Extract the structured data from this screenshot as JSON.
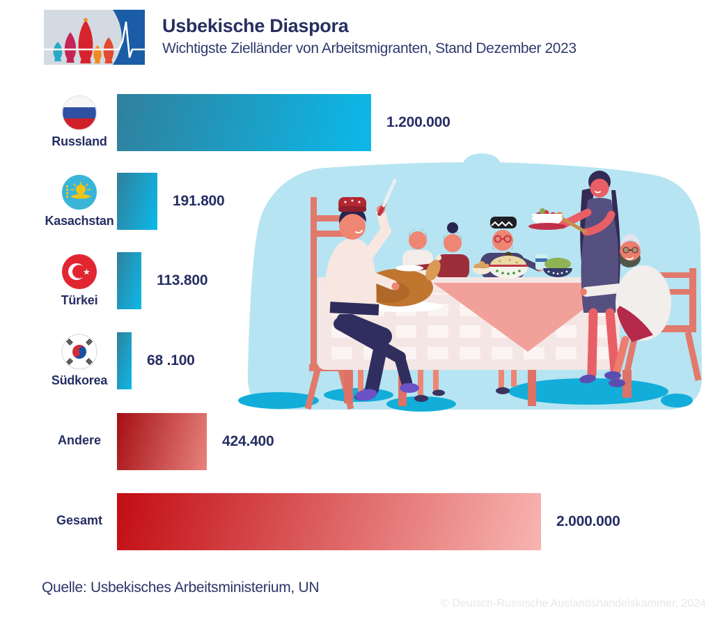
{
  "header": {
    "title": "Usbekische Diaspora",
    "subtitle": "Wichtigste Zielländer von Arbeitsmigranten, Stand Dezember 2023",
    "logo": {
      "icon": "st-basil-domes-with-pulse-line",
      "bg_left_color": "#d3dae1",
      "bg_right_color": "#1a5ca5"
    }
  },
  "chart_data": {
    "type": "bar",
    "orientation": "horizontal",
    "title": "Usbekische Diaspora",
    "subtitle": "Wichtigste Zielländer von Arbeitsmigranten, Stand Dezember 2023",
    "categories": [
      "Russland",
      "Kasachstan",
      "Türkei",
      "Südkorea",
      "Andere",
      "Gesamt"
    ],
    "values": [
      1200000,
      191800,
      113800,
      68100,
      424400,
      2000000
    ],
    "value_labels": [
      "1.200.000",
      "191.800",
      "113.800",
      "68 .100",
      "424.400",
      "2.000.000"
    ],
    "x_max": 2000000,
    "grid": false,
    "legend": false,
    "bar_colors": {
      "blue": [
        "#30809c",
        "#0bb9ea"
      ],
      "red_dark": [
        "#a50f15",
        "#e8837c"
      ],
      "red_wide": [
        "#c20d13",
        "#f8b5b1"
      ]
    },
    "rows": [
      {
        "label": "Russland",
        "value": 1200000,
        "value_label": "1.200.000",
        "flag": "russia",
        "palette": "blue"
      },
      {
        "label": "Kasachstan",
        "value": 191800,
        "value_label": "191.800",
        "flag": "kazakhstan",
        "palette": "blue"
      },
      {
        "label": "Türkei",
        "value": 113800,
        "value_label": "113.800",
        "flag": "turkey",
        "palette": "blue"
      },
      {
        "label": "Südkorea",
        "value": 68100,
        "value_label": "68 .100",
        "flag": "south-korea",
        "palette": "blue"
      },
      {
        "label": "Andere",
        "value": 424400,
        "value_label": "424.400",
        "flag": null,
        "palette": "red_dark"
      },
      {
        "label": "Gesamt",
        "value": 2000000,
        "value_label": "2.000.000",
        "flag": null,
        "palette": "red_wide"
      }
    ]
  },
  "illustration": {
    "name": "family-dinner-scene",
    "background_color": "#b7e4f2",
    "shadow_color": "#12aed9",
    "furniture_color": "#e1796c"
  },
  "footer": {
    "source": "Quelle: Usbekisches Arbeitsministerium, UN",
    "copyright": "© Deutsch-Russische Auslandshandelskammer, 2024"
  }
}
